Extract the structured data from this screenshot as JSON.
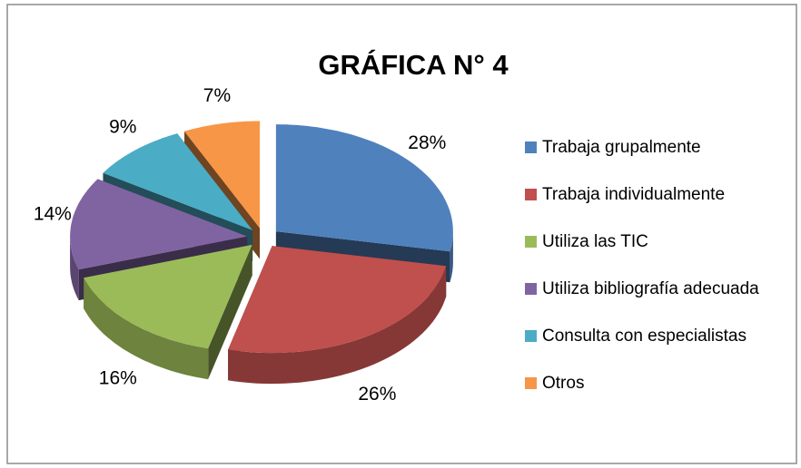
{
  "chart_data": {
    "type": "pie3d",
    "title": "GRÁFICA N° 4",
    "categories": [
      "Trabaja grupalmente",
      "Trabaja individualmente",
      "Utiliza las TIC",
      "Utiliza bibliografía adecuada",
      "Consulta con especialistas",
      "Otros"
    ],
    "values": [
      28,
      26,
      16,
      14,
      9,
      7
    ],
    "value_labels": [
      "28%",
      "26%",
      "16%",
      "14%",
      "9%",
      "7%"
    ],
    "colors": [
      "#4f81bd",
      "#c0504d",
      "#9bbb59",
      "#8064a2",
      "#4bacc6",
      "#f79646"
    ],
    "legend": "right"
  }
}
